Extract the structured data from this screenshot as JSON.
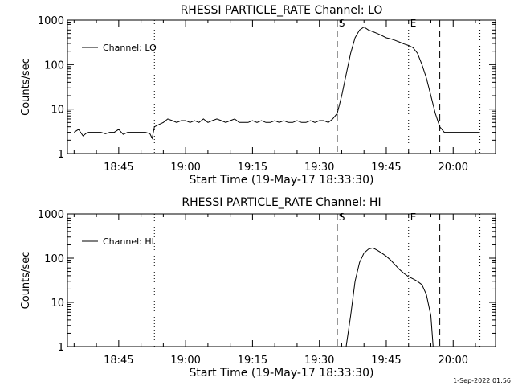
{
  "footer": {
    "timestamp": "1-Sep-2022 01:56"
  },
  "chart_data": [
    {
      "type": "line",
      "title": "RHESSI PARTICLE_RATE Channel: LO",
      "xlabel": "Start Time (19-May-17 18:33:30)",
      "ylabel": "Counts/sec",
      "y_scale": "log",
      "xlim": [
        "18:33:30",
        "20:09:30"
      ],
      "ylim": [
        1,
        1000
      ],
      "x_ticks": [
        "18:45",
        "19:00",
        "19:15",
        "19:30",
        "19:45",
        "20:00"
      ],
      "y_ticks": [
        "1",
        "10",
        "100",
        "1000"
      ],
      "legend": "top-left",
      "grid": false,
      "series": [
        {
          "name": "Channel: LO",
          "x": [
            "18:35",
            "18:36",
            "18:37",
            "18:38",
            "18:39",
            "18:40",
            "18:41",
            "18:42",
            "18:43",
            "18:44",
            "18:45",
            "18:46",
            "18:47",
            "18:48",
            "18:49",
            "18:50",
            "18:51",
            "18:52",
            "18:52:30",
            "18:53",
            "18:54",
            "18:55",
            "18:56",
            "18:57",
            "18:58",
            "18:59",
            "19:00",
            "19:01",
            "19:02",
            "19:03",
            "19:04",
            "19:05",
            "19:06",
            "19:07",
            "19:08",
            "19:09",
            "19:10",
            "19:11",
            "19:12",
            "19:13",
            "19:14",
            "19:15",
            "19:16",
            "19:17",
            "19:18",
            "19:19",
            "19:20",
            "19:21",
            "19:22",
            "19:23",
            "19:24",
            "19:25",
            "19:26",
            "19:27",
            "19:28",
            "19:29",
            "19:30",
            "19:31",
            "19:32",
            "19:33",
            "19:34",
            "19:35",
            "19:36",
            "19:37",
            "19:38",
            "19:39",
            "19:40",
            "19:41",
            "19:42",
            "19:43",
            "19:44",
            "19:45",
            "19:46",
            "19:47",
            "19:48",
            "19:49",
            "19:50",
            "19:51",
            "19:52",
            "19:53",
            "19:54",
            "19:55",
            "19:56",
            "19:57",
            "19:58",
            "19:59",
            "20:00",
            "20:01",
            "20:02",
            "20:03",
            "20:04",
            "20:05",
            "20:06"
          ],
          "values": [
            3,
            3.5,
            2.5,
            3,
            3,
            3,
            3,
            2.8,
            3,
            3,
            3.5,
            2.7,
            3,
            3,
            3,
            3,
            3,
            2.8,
            2.2,
            4,
            4.5,
            5,
            6,
            5.5,
            5,
            5.5,
            5.5,
            5,
            5.5,
            5,
            6,
            5,
            5.5,
            6,
            5.5,
            5,
            5.5,
            6,
            5,
            5,
            5,
            5.5,
            5,
            5.5,
            5,
            5,
            5.5,
            5,
            5.5,
            5,
            5,
            5.5,
            5,
            5,
            5.5,
            5,
            5.5,
            5.5,
            5,
            6,
            8,
            20,
            60,
            180,
            400,
            600,
            700,
            600,
            550,
            500,
            450,
            400,
            380,
            350,
            320,
            290,
            270,
            240,
            180,
            100,
            50,
            20,
            8,
            4,
            3,
            3,
            3,
            3,
            3,
            3,
            3,
            3,
            3
          ]
        }
      ],
      "markers": [
        {
          "label": "",
          "x": "18:53",
          "style": "dotted"
        },
        {
          "label": "S",
          "x": "19:34",
          "style": "dashed"
        },
        {
          "label": "E",
          "x": "19:50",
          "style": "dotted"
        },
        {
          "label": "",
          "x": "19:57",
          "style": "dashed"
        },
        {
          "label": "",
          "x": "20:06",
          "style": "dotted"
        }
      ]
    },
    {
      "type": "line",
      "title": "RHESSI PARTICLE_RATE Channel: HI",
      "xlabel": "Start Time (19-May-17 18:33:30)",
      "ylabel": "Counts/sec",
      "y_scale": "log",
      "xlim": [
        "18:33:30",
        "20:09:30"
      ],
      "ylim": [
        1,
        1000
      ],
      "x_ticks": [
        "18:45",
        "19:00",
        "19:15",
        "19:30",
        "19:45",
        "20:00"
      ],
      "y_ticks": [
        "1",
        "10",
        "100",
        "1000"
      ],
      "legend": "top-left",
      "grid": false,
      "series": [
        {
          "name": "Channel: HI",
          "x": [
            "19:36",
            "19:37",
            "19:38",
            "19:39",
            "19:40",
            "19:41",
            "19:42",
            "19:43",
            "19:44",
            "19:45",
            "19:46",
            "19:47",
            "19:48",
            "19:49",
            "19:50",
            "19:51",
            "19:52",
            "19:53",
            "19:54",
            "19:55",
            "19:55:30"
          ],
          "values": [
            1,
            5,
            30,
            80,
            130,
            160,
            170,
            150,
            130,
            110,
            90,
            70,
            55,
            45,
            38,
            34,
            30,
            25,
            15,
            5,
            1
          ]
        }
      ],
      "markers": [
        {
          "label": "",
          "x": "18:53",
          "style": "dotted"
        },
        {
          "label": "S",
          "x": "19:34",
          "style": "dashed"
        },
        {
          "label": "E",
          "x": "19:50",
          "style": "dotted"
        },
        {
          "label": "",
          "x": "19:57",
          "style": "dashed"
        },
        {
          "label": "",
          "x": "20:06",
          "style": "dotted"
        }
      ]
    }
  ]
}
